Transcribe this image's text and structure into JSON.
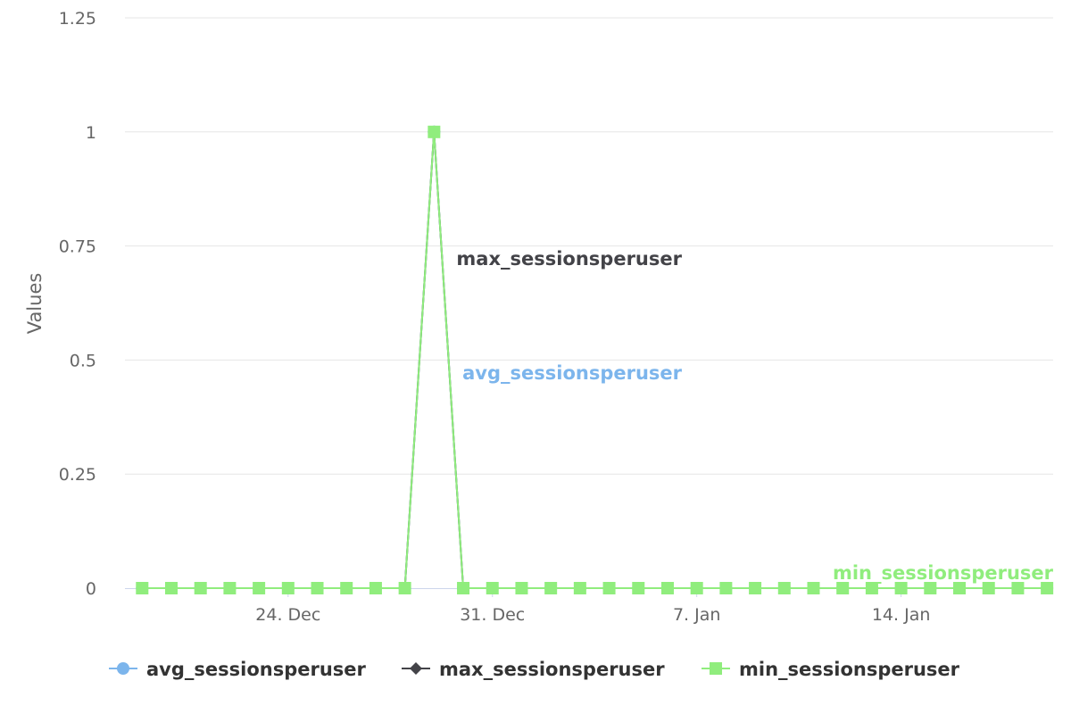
{
  "chart_data": {
    "type": "line",
    "ylabel": "Values",
    "xlabel": "",
    "title": "",
    "ylim": [
      0,
      1.25
    ],
    "yticks": [
      "0",
      "0.25",
      "0.5",
      "0.75",
      "1",
      "1.25"
    ],
    "xticks": [
      {
        "label": "24. Dec",
        "date": "2023-12-24"
      },
      {
        "label": "31. Dec",
        "date": "2023-12-31"
      },
      {
        "label": "7. Jan",
        "date": "2024-01-07"
      },
      {
        "label": "14. Jan",
        "date": "2024-01-14"
      }
    ],
    "x": [
      "2023-12-19",
      "2023-12-20",
      "2023-12-21",
      "2023-12-22",
      "2023-12-23",
      "2023-12-24",
      "2023-12-25",
      "2023-12-26",
      "2023-12-27",
      "2023-12-28",
      "2023-12-29",
      "2023-12-30",
      "2023-12-31",
      "2024-01-01",
      "2024-01-02",
      "2024-01-03",
      "2024-01-04",
      "2024-01-05",
      "2024-01-06",
      "2024-01-07",
      "2024-01-08",
      "2024-01-09",
      "2024-01-10",
      "2024-01-11",
      "2024-01-12",
      "2024-01-13",
      "2024-01-14",
      "2024-01-15",
      "2024-01-16",
      "2024-01-17",
      "2024-01-18",
      "2024-01-19"
    ],
    "series": [
      {
        "name": "avg_sessionsperuser",
        "color": "#7cb5ec",
        "marker": "circle",
        "values": [
          0,
          0,
          0,
          0,
          0,
          0,
          0,
          0,
          0,
          0,
          1,
          0,
          0,
          0,
          0,
          0,
          0,
          0,
          0,
          0,
          0,
          0,
          0,
          0,
          0,
          0,
          0,
          0,
          0,
          0,
          0,
          0
        ]
      },
      {
        "name": "max_sessionsperuser",
        "color": "#434348",
        "marker": "diamond",
        "values": [
          0,
          0,
          0,
          0,
          0,
          0,
          0,
          0,
          0,
          0,
          1,
          0,
          0,
          0,
          0,
          0,
          0,
          0,
          0,
          0,
          0,
          0,
          0,
          0,
          0,
          0,
          0,
          0,
          0,
          0,
          0,
          0
        ]
      },
      {
        "name": "min_sessionsperuser",
        "color": "#90ed7d",
        "marker": "square",
        "values": [
          0,
          0,
          0,
          0,
          0,
          0,
          0,
          0,
          0,
          0,
          1,
          0,
          0,
          0,
          0,
          0,
          0,
          0,
          0,
          0,
          0,
          0,
          0,
          0,
          0,
          0,
          0,
          0,
          0,
          0,
          0,
          0
        ]
      }
    ],
    "grid": true,
    "legend": "bottom-center"
  }
}
